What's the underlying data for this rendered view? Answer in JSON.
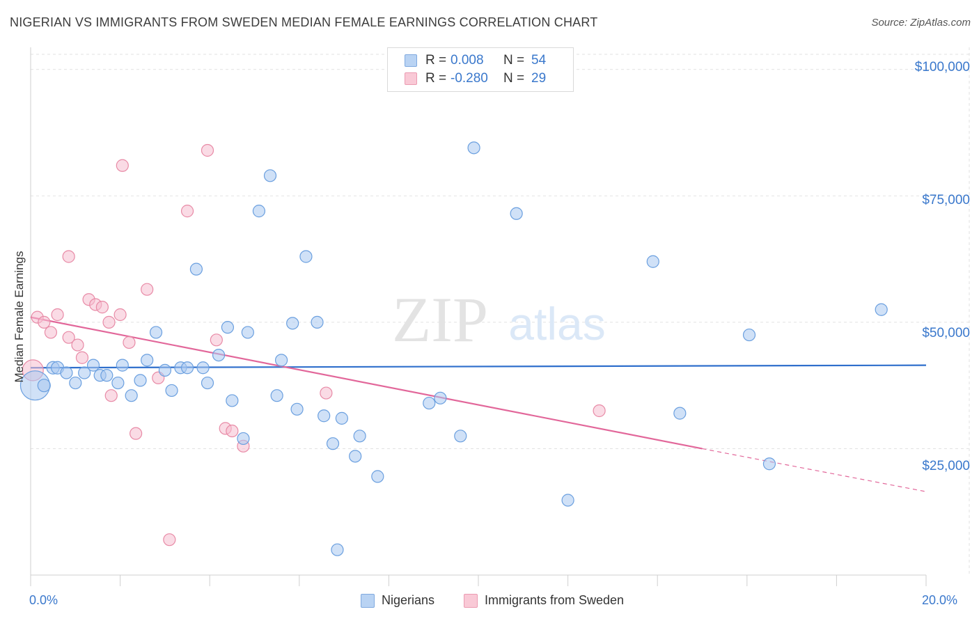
{
  "title": "NIGERIAN VS IMMIGRANTS FROM SWEDEN MEDIAN FEMALE EARNINGS CORRELATION CHART",
  "source": "Source: ZipAtlas.com",
  "watermark": {
    "zip": "ZIP",
    "atlas": "atlas"
  },
  "legend_top": [
    {
      "r_label": "R =",
      "r_value": "0.008",
      "n_label": "N =",
      "n_value": "54",
      "color": "#b9d3f3",
      "border": "#7fa9df"
    },
    {
      "r_label": "R =",
      "r_value": "-0.280",
      "n_label": "N =",
      "n_value": "29",
      "color": "#f9c9d6",
      "border": "#eb9ab1"
    }
  ],
  "legend_bottom": [
    {
      "label": "Nigerians",
      "color": "#b9d3f3",
      "border": "#7fa9df"
    },
    {
      "label": "Immigrants from Sweden",
      "color": "#f9c9d6",
      "border": "#eb9ab1"
    }
  ],
  "axis": {
    "x_min_label": "0.0%",
    "x_max_label": "20.0%",
    "y_title": "Median Female Earnings",
    "y_ticks": [
      {
        "label": "$100,000",
        "value": 100000
      },
      {
        "label": "$75,000",
        "value": 75000
      },
      {
        "label": "$50,000",
        "value": 50000
      },
      {
        "label": "$25,000",
        "value": 25000
      }
    ]
  },
  "chart_data": {
    "type": "scatter",
    "xlabel": "",
    "ylabel": "Median Female Earnings",
    "xlim": [
      0,
      20
    ],
    "ylim": [
      0,
      103000
    ],
    "grid": true,
    "series": [
      {
        "name": "Nigerians",
        "color": "#6a9fdf",
        "fill": "rgba(170,200,240,0.55)",
        "trend": {
          "x": [
            0,
            20
          ],
          "y": [
            41000,
            41500
          ],
          "color": "#2f6fcc"
        },
        "points": [
          [
            0.1,
            37500
          ],
          [
            0.3,
            37500
          ],
          [
            0.5,
            41000
          ],
          [
            0.6,
            41000
          ],
          [
            0.8,
            40000
          ],
          [
            1.0,
            38000
          ],
          [
            1.2,
            40000
          ],
          [
            1.4,
            41500
          ],
          [
            1.55,
            39500
          ],
          [
            1.7,
            39500
          ],
          [
            1.95,
            38000
          ],
          [
            2.05,
            41500
          ],
          [
            2.25,
            35500
          ],
          [
            2.45,
            38500
          ],
          [
            2.6,
            42500
          ],
          [
            2.8,
            48000
          ],
          [
            3.0,
            40500
          ],
          [
            3.15,
            36500
          ],
          [
            3.35,
            41000
          ],
          [
            3.5,
            41000
          ],
          [
            3.7,
            60500
          ],
          [
            3.85,
            41000
          ],
          [
            3.95,
            38000
          ],
          [
            4.2,
            43500
          ],
          [
            4.4,
            49000
          ],
          [
            4.5,
            34500
          ],
          [
            4.75,
            27000
          ],
          [
            4.85,
            48000
          ],
          [
            5.1,
            72000
          ],
          [
            5.35,
            79000
          ],
          [
            5.5,
            35500
          ],
          [
            5.6,
            42500
          ],
          [
            5.85,
            49800
          ],
          [
            5.95,
            32800
          ],
          [
            6.15,
            63000
          ],
          [
            6.4,
            50000
          ],
          [
            6.55,
            31500
          ],
          [
            6.75,
            26000
          ],
          [
            6.85,
            5000
          ],
          [
            6.95,
            31000
          ],
          [
            7.25,
            23500
          ],
          [
            7.35,
            27500
          ],
          [
            7.75,
            19500
          ],
          [
            8.9,
            34000
          ],
          [
            9.15,
            35000
          ],
          [
            9.6,
            27500
          ],
          [
            9.9,
            84500
          ],
          [
            10.85,
            71500
          ],
          [
            12.0,
            14800
          ],
          [
            13.9,
            62000
          ],
          [
            14.5,
            32000
          ],
          [
            16.05,
            47500
          ],
          [
            16.5,
            22000
          ],
          [
            19.0,
            52500
          ]
        ],
        "sizes": [
          38,
          14,
          14,
          14,
          12,
          12,
          12,
          12,
          12,
          12,
          12,
          12,
          12,
          12,
          12,
          12,
          12,
          12,
          12,
          12,
          12,
          12,
          12,
          12,
          12,
          12,
          12,
          12,
          12,
          12,
          12,
          12,
          12,
          12,
          12,
          12,
          12,
          12,
          12,
          12,
          12,
          12,
          12,
          12,
          12,
          12,
          12,
          12,
          12,
          12,
          12,
          12,
          12,
          12
        ]
      },
      {
        "name": "Immigrants from Sweden",
        "color": "#e88aa6",
        "fill": "rgba(246,190,208,0.55)",
        "trend": {
          "x": [
            0,
            15
          ],
          "y": [
            51000,
            25000
          ],
          "x_dash_end": 20,
          "y_dash_end": 16500,
          "color": "#e2679a"
        },
        "points": [
          [
            0.05,
            40500
          ],
          [
            0.15,
            51000
          ],
          [
            0.3,
            50000
          ],
          [
            0.45,
            48000
          ],
          [
            0.6,
            51500
          ],
          [
            0.85,
            47000
          ],
          [
            1.05,
            45500
          ],
          [
            1.15,
            43000
          ],
          [
            1.3,
            54500
          ],
          [
            1.45,
            53500
          ],
          [
            1.6,
            53000
          ],
          [
            1.75,
            50000
          ],
          [
            1.8,
            35500
          ],
          [
            2.0,
            51500
          ],
          [
            2.05,
            81000
          ],
          [
            2.2,
            46000
          ],
          [
            2.35,
            28000
          ],
          [
            2.6,
            56500
          ],
          [
            2.85,
            39000
          ],
          [
            3.1,
            7000
          ],
          [
            3.5,
            72000
          ],
          [
            3.95,
            84000
          ],
          [
            4.15,
            46500
          ],
          [
            4.35,
            29000
          ],
          [
            4.5,
            28500
          ],
          [
            4.75,
            25500
          ],
          [
            6.6,
            36000
          ],
          [
            12.7,
            32500
          ],
          [
            0.85,
            63000
          ]
        ],
        "sizes": [
          26,
          12,
          12,
          12,
          12,
          12,
          12,
          12,
          12,
          12,
          12,
          12,
          12,
          12,
          12,
          12,
          12,
          12,
          12,
          12,
          12,
          12,
          12,
          12,
          12,
          12,
          12,
          12,
          12
        ]
      }
    ]
  }
}
